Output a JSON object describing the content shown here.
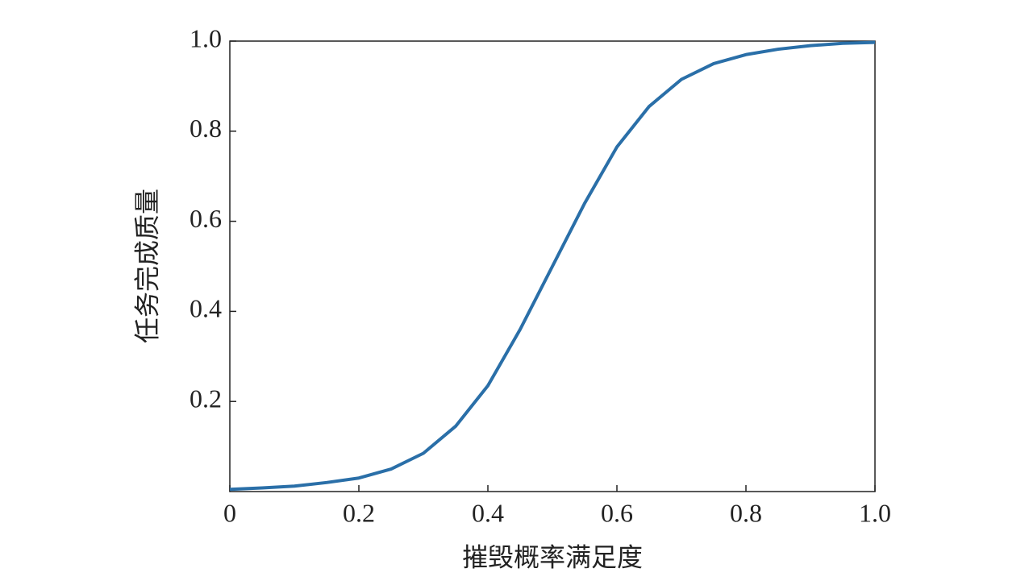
{
  "chart_data": {
    "type": "line",
    "x_label": "摧毁概率满足度",
    "y_label": "任务完成质量",
    "color": "#2a6fa8",
    "x": [
      0,
      0.05,
      0.1,
      0.15,
      0.2,
      0.25,
      0.3,
      0.35,
      0.4,
      0.45,
      0.5,
      0.55,
      0.6,
      0.65,
      0.7,
      0.75,
      0.8,
      0.85,
      0.9,
      0.95,
      1.0
    ],
    "values": [
      0.005,
      0.008,
      0.012,
      0.02,
      0.03,
      0.05,
      0.085,
      0.145,
      0.235,
      0.36,
      0.5,
      0.64,
      0.765,
      0.855,
      0.915,
      0.95,
      0.97,
      0.982,
      0.99,
      0.995,
      0.997
    ],
    "xlim": [
      0,
      1
    ],
    "ylim": [
      0,
      1
    ],
    "xticks": [
      0,
      0.2,
      0.4,
      0.6,
      0.8,
      {
        "value": 1,
        "label": "1.0"
      }
    ],
    "yticks": [
      0.2,
      0.4,
      0.6,
      0.8,
      {
        "value": 1,
        "label": "1.0"
      }
    ]
  }
}
